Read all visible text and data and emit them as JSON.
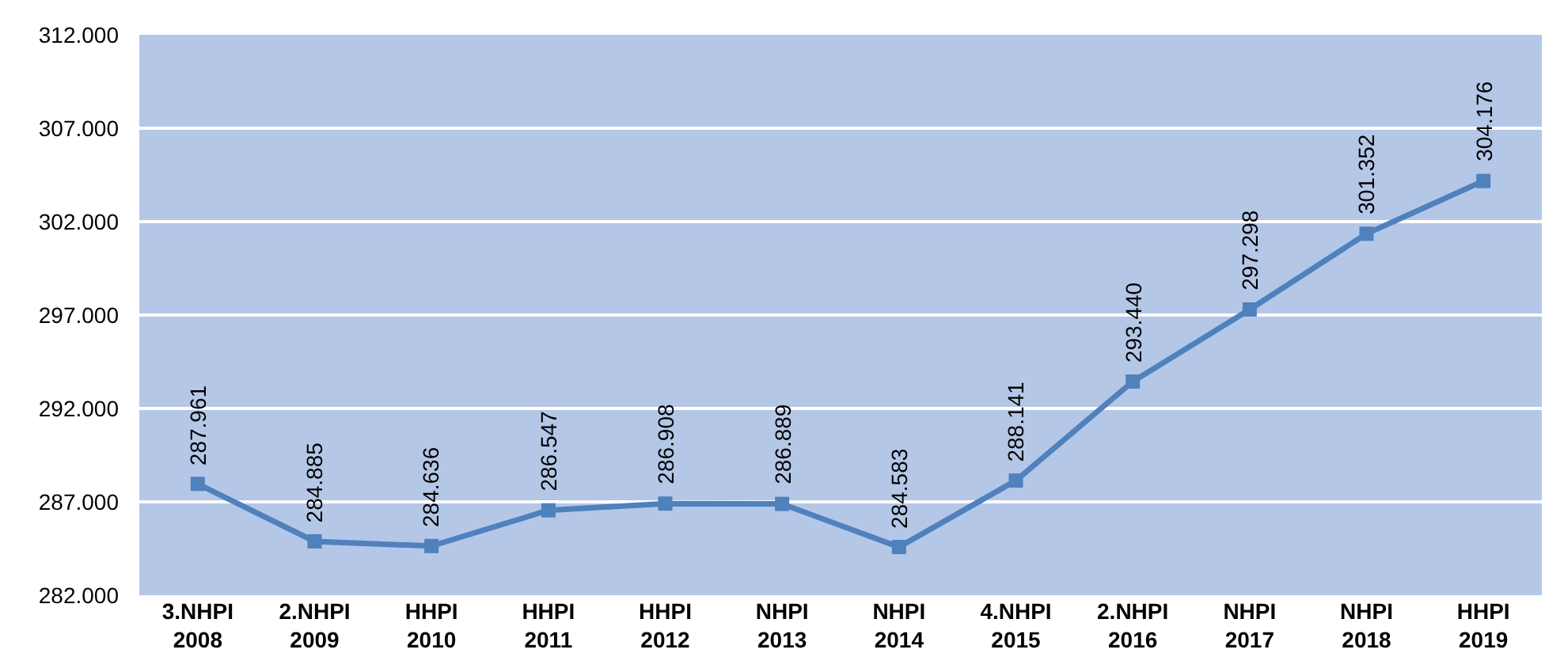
{
  "chart_data": {
    "type": "line",
    "categories": [
      "3.NHPI\n2008",
      "2.NHPI\n2009",
      "HHPI\n2010",
      "HHPI\n2011",
      "HHPI\n2012",
      "NHPI\n2013",
      "NHPI\n2014",
      "4.NHPI\n2015",
      "2.NHPI\n2016",
      "NHPI\n2017",
      "NHPI\n2018",
      "HHPI\n2019"
    ],
    "series": [
      {
        "color": "#4f81bd",
        "values": [
          287.961,
          284.885,
          284.636,
          286.547,
          286.908,
          286.889,
          284.583,
          288.141,
          293.44,
          297.298,
          301.352,
          304.176
        ],
        "value_labels": [
          "287.961",
          "284.885",
          "284.636",
          "286.547",
          "286.908",
          "286.889",
          "284.583",
          "288.141",
          "293.440",
          "297.298",
          "301.352",
          "304.176"
        ]
      }
    ],
    "ylim": [
      282,
      312
    ],
    "yticks": [
      {
        "value": 282,
        "label": "282.000"
      },
      {
        "value": 287,
        "label": "287.000"
      },
      {
        "value": 292,
        "label": "292.000"
      },
      {
        "value": 297,
        "label": "297.000"
      },
      {
        "value": 302,
        "label": "302.000"
      },
      {
        "value": 307,
        "label": "307.000"
      },
      {
        "value": 312,
        "label": "312.000"
      }
    ],
    "grid": "y",
    "marker": "square",
    "line_style": "solid"
  }
}
